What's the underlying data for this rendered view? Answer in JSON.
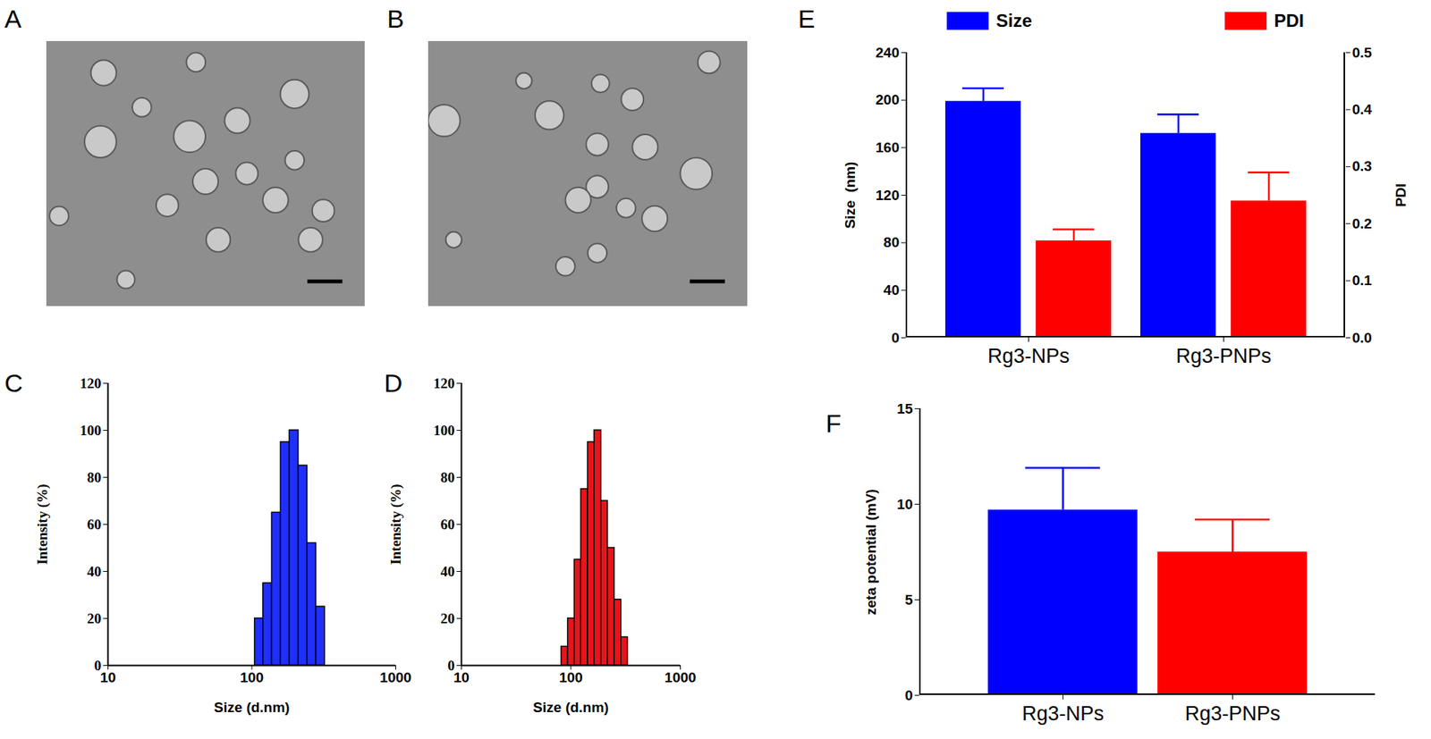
{
  "chart_data": [
    {
      "type": "image",
      "title": "A"
    },
    {
      "type": "image",
      "title": "B"
    },
    {
      "type": "histogram",
      "title": "C",
      "bins": [
        105,
        120,
        138,
        159,
        183,
        211,
        243,
        280,
        322
      ],
      "values": [
        20,
        35,
        65,
        95,
        100,
        85,
        52,
        25
      ],
      "color": "#1f2fff",
      "x_label": "Size (d.nm)",
      "y_label": "Intensity (%)",
      "log": "x",
      "xlim": [
        10,
        1000
      ],
      "xticks": [
        10,
        100,
        1000
      ],
      "ylim": [
        0,
        120
      ],
      "yticks": [
        0,
        20,
        40,
        60,
        80,
        100,
        120
      ]
    },
    {
      "type": "histogram",
      "title": "D",
      "bins": [
        82,
        94,
        108,
        124,
        143,
        164,
        189,
        217,
        250,
        288,
        331
      ],
      "values": [
        8,
        20,
        45,
        75,
        95,
        100,
        70,
        50,
        28,
        12
      ],
      "color": "#e8141b",
      "x_label": "Size (d.nm)",
      "y_label": "Intensity (%)",
      "log": "x",
      "xlim": [
        10,
        1000
      ],
      "xticks": [
        10,
        100,
        1000
      ],
      "ylim": [
        0,
        120
      ],
      "yticks": [
        0,
        20,
        40,
        60,
        80,
        100,
        120
      ]
    },
    {
      "type": "bar",
      "title": "E",
      "categories": [
        "Rg3-NPs",
        "Rg3-PNPs"
      ],
      "series": [
        {
          "name": "Size",
          "color": "#0000ff",
          "values": [
            199,
            172
          ],
          "errors": [
            11,
            16
          ]
        },
        {
          "name": "PDI",
          "color": "#ff0000",
          "values": [
            0.17,
            0.24
          ],
          "errors": [
            0.02,
            0.05
          ],
          "axis": "y2"
        }
      ],
      "y_label": "Size  (nm)",
      "y2_label": "PDI",
      "ylim": [
        0,
        240
      ],
      "yticks": [
        0,
        40,
        80,
        120,
        160,
        200,
        240
      ],
      "y2lim": [
        0,
        0.5
      ],
      "y2ticks": [
        {
          "value": 0,
          "label": "0.0"
        },
        0.1,
        0.2,
        0.3,
        0.4,
        0.5
      ],
      "legend": "top"
    },
    {
      "type": "bar",
      "title": "F",
      "categories": [
        "Rg3-NPs",
        "Rg3-PNPs"
      ],
      "values": [
        9.7,
        7.5
      ],
      "errors": [
        2.2,
        1.7
      ],
      "colors": [
        "#0000ff",
        "#ff0000"
      ],
      "y_label": "zeta potential (mV)",
      "ylim": [
        0,
        15
      ],
      "yticks": [
        0,
        5,
        10,
        15
      ]
    }
  ]
}
